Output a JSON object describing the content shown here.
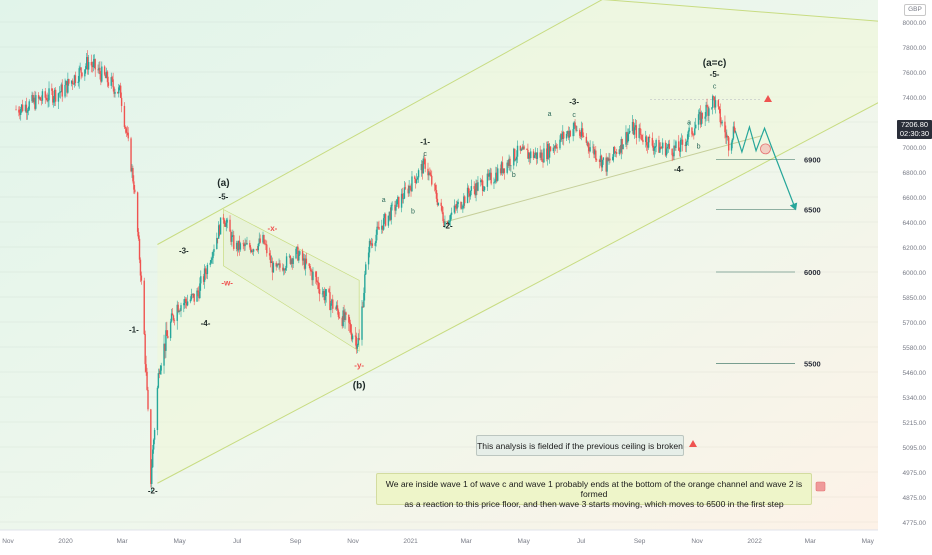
{
  "app": {
    "currency": "GBP"
  },
  "price_tag": {
    "value": "7206.80",
    "countdown": "02:30:30"
  },
  "notes": {
    "warning": "This analysis is fielded if the previous ceiling is broken",
    "scenario_line1": "We are inside wave 1 of wave c and wave 1 probably ends at the bottom of the orange channel and wave 2 is formed",
    "scenario_line2": "as a reaction to this price floor, and then wave 3 starts moving, which moves to 6500 in the first step"
  },
  "colors": {
    "up": "#26a69a",
    "down": "#ef5350",
    "channel": "#c8dc82",
    "projection": "#26a69a",
    "wave_label": "#1e2a28",
    "sub_label": "#ef5350"
  },
  "chart_data": {
    "type": "candlestick",
    "instrument_currency": "GBP",
    "x_ticks": [
      "Nov",
      "2020",
      "Mar",
      "May",
      "Jul",
      "Sep",
      "Nov",
      "2021",
      "Mar",
      "May",
      "Jul",
      "Sep",
      "Nov",
      "2022",
      "Mar",
      "May"
    ],
    "y_ticks": [
      8000,
      7800,
      7600,
      7400,
      7200,
      7000,
      6800,
      6600,
      6400,
      6200,
      6000,
      5850,
      5700,
      5580,
      5460,
      5340,
      5215,
      5095,
      4975,
      4875,
      4775
    ],
    "y_tick_labels": [
      "8000.00",
      "7800.00",
      "7600.00",
      "7400.00",
      "7200.00",
      "7000.00",
      "6800.00",
      "6600.00",
      "6400.00",
      "6200.00",
      "6000.00",
      "5850.00",
      "5700.00",
      "5580.00",
      "5460.00",
      "5340.00",
      "5215.00",
      "5095.00",
      "4975.00",
      "4875.00",
      "4775.00"
    ],
    "last_price": 7206.8,
    "target_levels": [
      {
        "label": "6900",
        "value": 6900
      },
      {
        "label": "6500",
        "value": 6500
      },
      {
        "label": "6000",
        "value": 6000
      },
      {
        "label": "5500",
        "value": 5500
      }
    ],
    "price_anchors": [
      {
        "date": "2019-11-01",
        "close": 7300
      },
      {
        "date": "2019-12-20",
        "close": 7450
      },
      {
        "date": "2020-01-17",
        "close": 7680
      },
      {
        "date": "2020-02-20",
        "close": 7430
      },
      {
        "date": "2020-03-05",
        "close": 6700
      },
      {
        "date": "2020-03-23",
        "close": 4950
      },
      {
        "date": "2020-04-01",
        "close": 5500
      },
      {
        "date": "2020-04-20",
        "close": 5800
      },
      {
        "date": "2020-05-10",
        "close": 5850
      },
      {
        "date": "2020-05-20",
        "close": 6000
      },
      {
        "date": "2020-06-08",
        "close": 6450
      },
      {
        "date": "2020-06-20",
        "close": 6200
      },
      {
        "date": "2020-07-10",
        "close": 6200
      },
      {
        "date": "2020-07-20",
        "close": 6250
      },
      {
        "date": "2020-08-01",
        "close": 6000
      },
      {
        "date": "2020-08-25",
        "close": 6150
      },
      {
        "date": "2020-09-21",
        "close": 5880
      },
      {
        "date": "2020-10-30",
        "close": 5600
      },
      {
        "date": "2020-11-09",
        "close": 6200
      },
      {
        "date": "2020-11-25",
        "close": 6400
      },
      {
        "date": "2020-12-10",
        "close": 6550
      },
      {
        "date": "2021-01-08",
        "close": 6870
      },
      {
        "date": "2021-01-29",
        "close": 6400
      },
      {
        "date": "2021-02-25",
        "close": 6650
      },
      {
        "date": "2021-03-20",
        "close": 6750
      },
      {
        "date": "2021-04-15",
        "close": 6950
      },
      {
        "date": "2021-05-12",
        "close": 6930
      },
      {
        "date": "2021-06-15",
        "close": 7160
      },
      {
        "date": "2021-07-19",
        "close": 6850
      },
      {
        "date": "2021-08-15",
        "close": 7150
      },
      {
        "date": "2021-09-10",
        "close": 7000
      },
      {
        "date": "2021-10-04",
        "close": 6980
      },
      {
        "date": "2021-11-10",
        "close": 7380
      },
      {
        "date": "2021-11-26",
        "close": 7030
      },
      {
        "date": "2021-12-03",
        "close": 7180
      }
    ],
    "projection": [
      {
        "date": "2021-12-03",
        "value": 7130
      },
      {
        "date": "2021-12-10",
        "value": 6960
      },
      {
        "date": "2021-12-18",
        "value": 7160
      },
      {
        "date": "2021-12-25",
        "value": 6970
      },
      {
        "date": "2022-01-03",
        "value": 7150
      },
      {
        "date": "2022-01-13",
        "value": 6950
      },
      {
        "date": "2022-02-05",
        "value": 6500
      }
    ],
    "channel": [
      {
        "role": "upper",
        "from": {
          "date": "2020-03-30",
          "value": 6220
        },
        "to": {
          "date": "2021-07-15",
          "value": 8180
        }
      },
      {
        "role": "upper-ext",
        "from": {
          "date": "2021-07-15",
          "value": 8180
        },
        "to": {
          "date": "2022-05-15",
          "value": 8000
        }
      },
      {
        "role": "lower",
        "from": {
          "date": "2020-03-30",
          "value": 4930
        },
        "to": {
          "date": "2022-05-15",
          "value": 7400
        }
      }
    ],
    "wave_labels": [
      {
        "text": "-1-",
        "date": "2020-03-05",
        "value": 5650
      },
      {
        "text": "-2-",
        "date": "2020-03-25",
        "value": 4890
      },
      {
        "text": "-3-",
        "date": "2020-04-27",
        "value": 6150
      },
      {
        "text": "-4-",
        "date": "2020-05-20",
        "value": 5680
      },
      {
        "text": "-5-",
        "date": "2020-06-08",
        "value": 6580
      },
      {
        "text": "(a)",
        "date": "2020-06-08",
        "value": 6690
      },
      {
        "text": "-w-",
        "date": "2020-06-12",
        "value": 5920
      },
      {
        "text": "-x-",
        "date": "2020-07-30",
        "value": 6330
      },
      {
        "text": "-y-",
        "date": "2020-10-30",
        "value": 5480
      },
      {
        "text": "(b)",
        "date": "2020-10-30",
        "value": 5380
      },
      {
        "text": "-1-",
        "date": "2021-01-08",
        "value": 7020
      },
      {
        "text": "-2-",
        "date": "2021-02-01",
        "value": 6350
      },
      {
        "text": "-3-",
        "date": "2021-06-15",
        "value": 7340
      },
      {
        "text": "-4-",
        "date": "2021-10-04",
        "value": 6800
      },
      {
        "text": "-5-",
        "date": "2021-11-11",
        "value": 7560
      },
      {
        "text": "(a=c)",
        "date": "2021-11-11",
        "value": 7650
      }
    ],
    "sub_wave_labels": [
      {
        "text": "a",
        "date": "2020-11-25",
        "value": 6560
      },
      {
        "text": "b",
        "date": "2020-12-26",
        "value": 6470
      },
      {
        "text": "c",
        "date": "2021-01-08",
        "value": 6930
      },
      {
        "text": "a",
        "date": "2021-05-20",
        "value": 7250
      },
      {
        "text": "b",
        "date": "2021-04-12",
        "value": 6760
      },
      {
        "text": "c",
        "date": "2021-06-15",
        "value": 7240
      },
      {
        "text": "a",
        "date": "2021-10-15",
        "value": 7180
      },
      {
        "text": "b",
        "date": "2021-10-25",
        "value": 6990
      },
      {
        "text": "c",
        "date": "2021-11-11",
        "value": 7470
      }
    ]
  }
}
